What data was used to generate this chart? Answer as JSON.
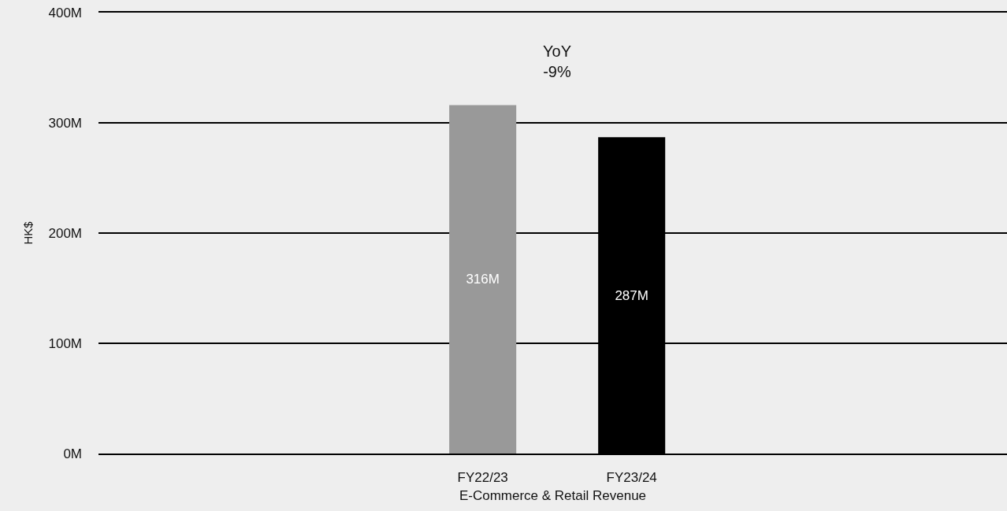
{
  "chart_data": {
    "type": "bar",
    "categories": [
      "FY22/23",
      "FY23/24"
    ],
    "values": [
      316,
      287
    ],
    "colors": [
      "#999999",
      "#000000"
    ],
    "value_labels": [
      "316M",
      "287M"
    ],
    "xlabel": "E-Commerce & Retail Revenue",
    "ylabel": "HK$",
    "annotations": [
      "YoY\n-9%"
    ],
    "ylim": [
      0,
      400
    ],
    "yticks": [
      {
        "value": 0,
        "label": "0M"
      },
      {
        "value": 100,
        "label": "100M"
      },
      {
        "value": 200,
        "label": "200M"
      },
      {
        "value": 300,
        "label": "300M"
      },
      {
        "value": 400,
        "label": "400M"
      }
    ],
    "grid": "y"
  }
}
